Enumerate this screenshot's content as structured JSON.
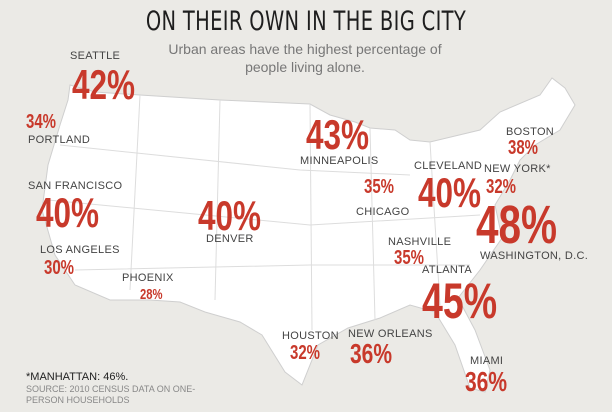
{
  "title": "ON THEIR OWN IN THE BIG CITY",
  "subtitle": "Urban areas have the highest percentage of people living alone.",
  "colors": {
    "accent": "#c8392b",
    "background": "#ebeae6",
    "land": "#ffffff"
  },
  "cities": [
    {
      "name": "SEATTLE",
      "value": "42%"
    },
    {
      "name": "PORTLAND",
      "value": "34%"
    },
    {
      "name": "SAN FRANCISCO",
      "value": "40%"
    },
    {
      "name": "LOS ANGELES",
      "value": "30%"
    },
    {
      "name": "PHOENIX",
      "value": "28%"
    },
    {
      "name": "DENVER",
      "value": "40%"
    },
    {
      "name": "MINNEAPOLIS",
      "value": "43%"
    },
    {
      "name": "CHICAGO",
      "value": "35%"
    },
    {
      "name": "CLEVELAND",
      "value": "40%"
    },
    {
      "name": "BOSTON",
      "value": "38%"
    },
    {
      "name": "NEW YORK*",
      "value": "32%"
    },
    {
      "name": "WASHINGTON, D.C.",
      "value": "48%"
    },
    {
      "name": "NASHVILLE",
      "value": "35%"
    },
    {
      "name": "ATLANTA",
      "value": "45%"
    },
    {
      "name": "HOUSTON",
      "value": "32%"
    },
    {
      "name": "NEW ORLEANS",
      "value": "36%"
    },
    {
      "name": "MIAMI",
      "value": "36%"
    }
  ],
  "footnote": "*MANHATTAN: 46%.",
  "source": "SOURCE: 2010 CENSUS DATA ON ONE-PERSON HOUSEHOLDS"
}
